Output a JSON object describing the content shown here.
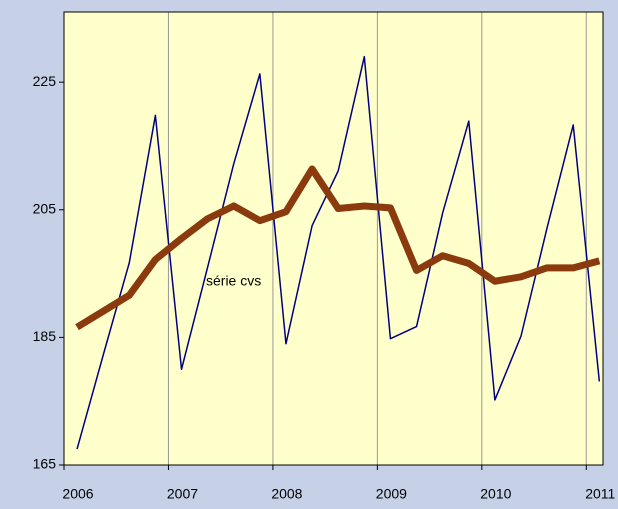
{
  "chart_data": {
    "type": "line",
    "annotation": "série cvs",
    "x": [
      2006.125,
      2006.375,
      2006.625,
      2006.875,
      2007.125,
      2007.375,
      2007.625,
      2007.875,
      2008.125,
      2008.375,
      2008.625,
      2008.875,
      2009.125,
      2009.375,
      2009.625,
      2009.875,
      2010.125,
      2010.375,
      2010.625,
      2010.875,
      2011.125
    ],
    "series": [
      {
        "color": "#000080",
        "width": 1.5,
        "values": [
          167.5,
          182.2,
          196.7,
          219.8,
          180,
          196,
          212.2,
          226.3,
          184,
          202.5,
          211.1,
          229,
          184.8,
          186.7,
          204.5,
          218.9,
          175.2,
          185.2,
          202.2,
          218.3,
          178.1
        ]
      },
      {
        "color": "#8b3a0e",
        "width": 7,
        "values": [
          186.6,
          189.1,
          191.6,
          197.2,
          200.5,
          203.6,
          205.6,
          203.3,
          204.7,
          211.4,
          205.2,
          205.6,
          205.3,
          195.5,
          197.8,
          196.6,
          193.8,
          194.5,
          195.9,
          195.9,
          197
        ]
      }
    ],
    "xlim": [
      2006,
      2011.16
    ],
    "xticks": [
      2006,
      2007,
      2008,
      2009,
      2010,
      2011
    ],
    "ylim": [
      165,
      236
    ],
    "yticks": [
      165,
      185,
      205,
      225
    ],
    "grid": "x",
    "background": "#c6d0e6",
    "plot_background": "#ffffcc"
  }
}
